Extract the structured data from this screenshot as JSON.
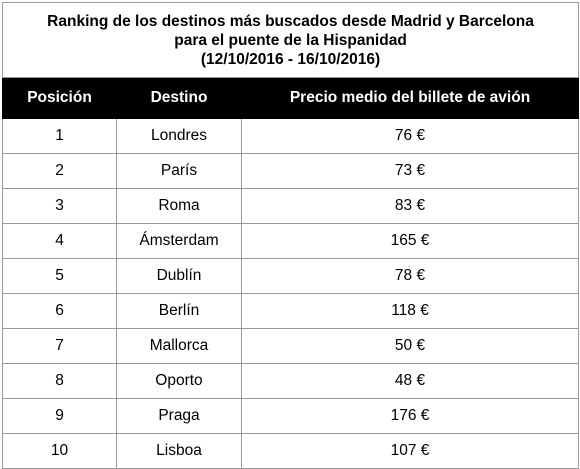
{
  "title": {
    "line1": "Ranking de los destinos más buscados desde Madrid y Barcelona",
    "line2": "para el puente de la Hispanidad",
    "line3": "(12/10/2016 - 16/10/2016)"
  },
  "columns": [
    "Posición",
    "Destino",
    "Precio medio del billete de avión"
  ],
  "rows": [
    {
      "pos": "1",
      "destino": "Londres",
      "precio": "76 €"
    },
    {
      "pos": "2",
      "destino": "París",
      "precio": "73 €"
    },
    {
      "pos": "3",
      "destino": "Roma",
      "precio": "83 €"
    },
    {
      "pos": "4",
      "destino": "Ámsterdam",
      "precio": "165 €"
    },
    {
      "pos": "5",
      "destino": "Dublín",
      "precio": "78 €"
    },
    {
      "pos": "6",
      "destino": "Berlín",
      "precio": "118 €"
    },
    {
      "pos": "7",
      "destino": "Mallorca",
      "precio": "50 €"
    },
    {
      "pos": "8",
      "destino": "Oporto",
      "precio": "48 €"
    },
    {
      "pos": "9",
      "destino": "Praga",
      "precio": "176 €"
    },
    {
      "pos": "10",
      "destino": "Lisboa",
      "precio": "107 €"
    }
  ],
  "colors": {
    "header_bg": "#000000",
    "header_text": "#ffffff",
    "border": "#9a9a9a"
  }
}
